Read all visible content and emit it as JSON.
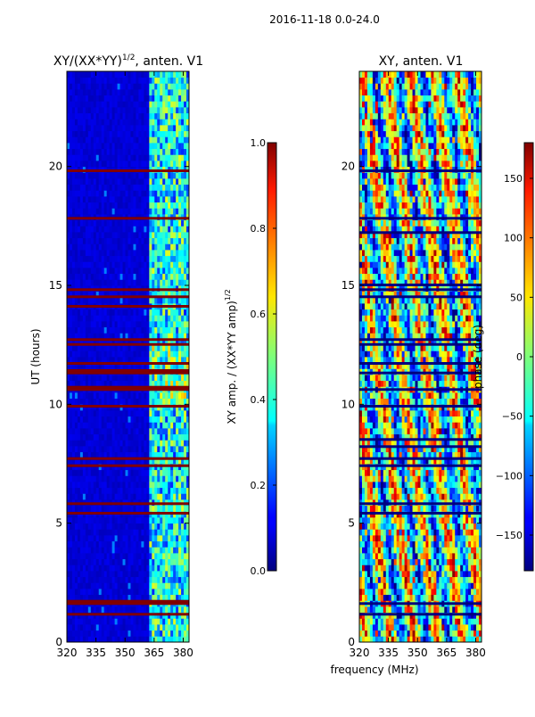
{
  "figure_title": "2016-11-18 0.0-24.0",
  "chart_data": [
    {
      "type": "heatmap",
      "title": "XY/(XX*YY)",
      "title_exponent": "1/2",
      "title_suffix": ", anten. V1",
      "xlabel": "",
      "ylabel": "UT (hours)",
      "xlim": [
        320,
        383
      ],
      "ylim": [
        0,
        24
      ],
      "xticks": [
        320,
        335,
        350,
        365,
        380
      ],
      "yticks": [
        0,
        5,
        10,
        15,
        20
      ],
      "colorbar": {
        "label": "XY amp. / (XX*YY amp)",
        "label_exponent": "1/2",
        "range": [
          0.0,
          1.0
        ],
        "ticks": [
          "0.0",
          "0.2",
          "0.4",
          "0.6",
          "0.8",
          "1.0"
        ],
        "colormap": "jet"
      },
      "flagged_hours": [
        1.15,
        1.6,
        1.7,
        5.4,
        5.8,
        7.4,
        7.7,
        9.9,
        10.6,
        10.7,
        11.3,
        11.4,
        11.7,
        12.5,
        12.7,
        14.1,
        14.5,
        14.8,
        17.8,
        19.8
      ]
    },
    {
      "type": "heatmap",
      "title": "XY, anten. V1",
      "xlabel": "frequency (MHz)",
      "ylabel": "",
      "xlim": [
        320,
        383
      ],
      "ylim": [
        0,
        24
      ],
      "xticks": [
        320,
        335,
        350,
        365,
        380
      ],
      "yticks": [
        0,
        5,
        10,
        15,
        20
      ],
      "colorbar": {
        "label": "phase (deg)",
        "range": [
          -180,
          180
        ],
        "ticks": [
          "−150",
          "−100",
          "−50",
          "0",
          "50",
          "100",
          "150"
        ],
        "colormap": "jet"
      },
      "flagged_hours": [
        1.15,
        1.6,
        5.4,
        5.8,
        7.4,
        7.7,
        8.2,
        8.5,
        9.9,
        10.6,
        11.3,
        11.7,
        12.5,
        12.7,
        14.5,
        14.8,
        15.0,
        17.2,
        17.8,
        19.8
      ]
    }
  ]
}
